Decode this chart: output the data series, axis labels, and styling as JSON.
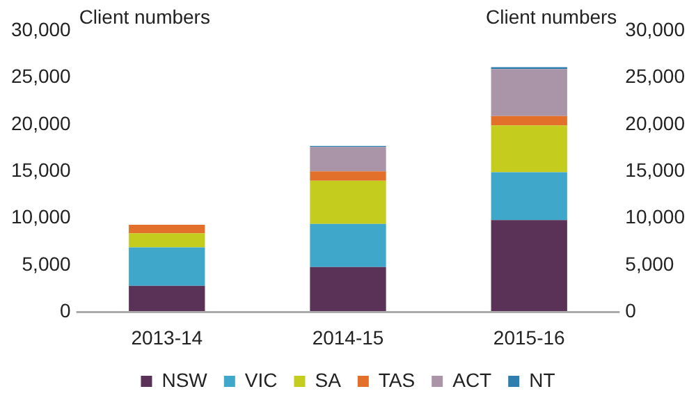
{
  "chart_data": {
    "type": "bar",
    "stacked": true,
    "ylabel": "Client numbers",
    "y2label": "Client numbers",
    "categories": [
      "2013-14",
      "2014-15",
      "2015-16"
    ],
    "series": [
      {
        "name": "NSW",
        "color": "#5a3157",
        "values": [
          2800,
          4800,
          9800
        ]
      },
      {
        "name": "VIC",
        "color": "#3fa7c9",
        "values": [
          4100,
          4600,
          5100
        ]
      },
      {
        "name": "SA",
        "color": "#c4cc1e",
        "values": [
          1500,
          4600,
          5000
        ]
      },
      {
        "name": "TAS",
        "color": "#e2702a",
        "values": [
          900,
          1000,
          1000
        ]
      },
      {
        "name": "ACT",
        "color": "#a995a7",
        "values": [
          0,
          2600,
          5000
        ]
      },
      {
        "name": "NT",
        "color": "#2e7fae",
        "values": [
          0,
          100,
          200
        ]
      }
    ],
    "ylim": [
      0,
      30000
    ],
    "yticks": [
      0,
      {
        "value": 5000,
        "label": "5,000"
      },
      {
        "value": 10000,
        "label": "10,000"
      },
      {
        "value": 15000,
        "label": "15,000"
      },
      {
        "value": 20000,
        "label": "20,000"
      },
      {
        "value": 25000,
        "label": "25,000"
      },
      {
        "value": 30000,
        "label": "30,000"
      }
    ],
    "y2lim": [
      0,
      30000
    ],
    "y2ticks": [
      0,
      {
        "value": 5000,
        "label": "5,000"
      },
      {
        "value": 10000,
        "label": "10,000"
      },
      {
        "value": 15000,
        "label": "15,000"
      },
      {
        "value": 20000,
        "label": "20,000"
      },
      {
        "value": 25000,
        "label": "25,000"
      },
      {
        "value": 30000,
        "label": "30,000"
      }
    ],
    "grid": false,
    "legend": "bottom"
  }
}
